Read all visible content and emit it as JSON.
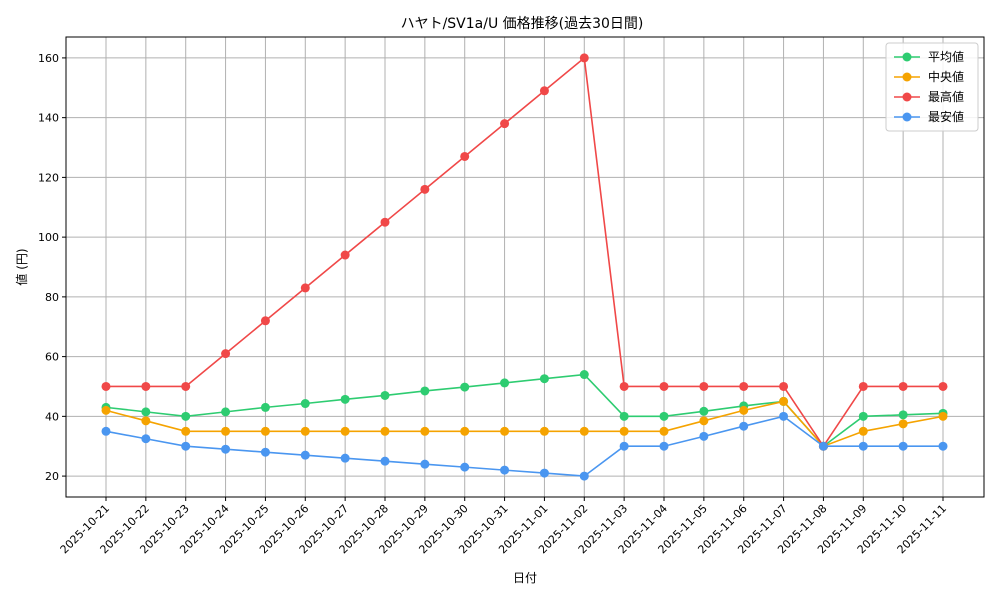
{
  "chart_data": {
    "type": "line",
    "title": "ハヤト/SV1a/U 価格推移(過去30日間)",
    "xlabel": "日付",
    "ylabel": "値 (円)",
    "ylim": [
      13,
      167
    ],
    "yticks": [
      20,
      40,
      60,
      80,
      100,
      120,
      140,
      160
    ],
    "grid": true,
    "legend_position": "top-right",
    "categories": [
      "2025-10-21",
      "2025-10-22",
      "2025-10-23",
      "2025-10-24",
      "2025-10-25",
      "2025-10-26",
      "2025-10-27",
      "2025-10-28",
      "2025-10-29",
      "2025-10-30",
      "2025-10-31",
      "2025-11-01",
      "2025-11-02",
      "2025-11-03",
      "2025-11-04",
      "2025-11-05",
      "2025-11-06",
      "2025-11-07",
      "2025-11-08",
      "2025-11-09",
      "2025-11-10",
      "2025-11-11"
    ],
    "series": [
      {
        "name": "平均値",
        "color": "#2ecc71",
        "values": [
          43,
          41.5,
          40,
          41.5,
          43,
          44.3,
          45.7,
          47,
          48.5,
          49.8,
          51.2,
          52.6,
          54,
          40,
          40,
          41.7,
          43.5,
          45,
          30,
          40,
          40.5,
          41
        ]
      },
      {
        "name": "中央値",
        "color": "#f5a300",
        "values": [
          42,
          38.5,
          35,
          35,
          35,
          35,
          35,
          35,
          35,
          35,
          35,
          35,
          35,
          35,
          35,
          38.5,
          42,
          45,
          30,
          35,
          37.5,
          40
        ]
      },
      {
        "name": "最高値",
        "color": "#f04848",
        "values": [
          50,
          50,
          50,
          61,
          72,
          83,
          94,
          105,
          116,
          127,
          138,
          149,
          160,
          50,
          50,
          50,
          50,
          50,
          30,
          50,
          50,
          50
        ]
      },
      {
        "name": "最安値",
        "color": "#4a96f0",
        "values": [
          35,
          32.5,
          30,
          29,
          28,
          27,
          26,
          25,
          24,
          23,
          22,
          21,
          20,
          30,
          30,
          33.3,
          36.7,
          40,
          30,
          30,
          30,
          30
        ]
      }
    ]
  }
}
